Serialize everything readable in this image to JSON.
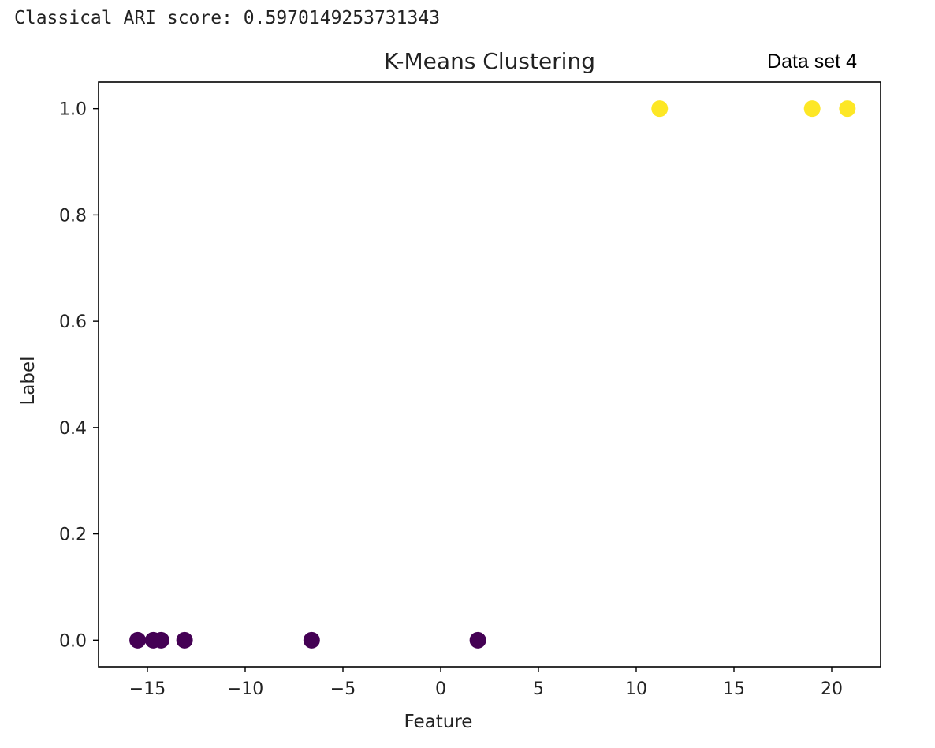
{
  "console": {
    "output": "Classical ARI score: 0.5970149253731343"
  },
  "chart_data": {
    "type": "scatter",
    "title": "K-Means Clustering",
    "annotation": "Data set 4",
    "xlabel": "Feature",
    "ylabel": "Label",
    "xlim": [
      -17.5,
      22.5
    ],
    "ylim": [
      -0.05,
      1.05
    ],
    "xticks": [
      -15,
      -10,
      -5,
      0,
      5,
      10,
      15,
      20
    ],
    "xtick_labels": [
      "−15",
      "−10",
      "−5",
      "0",
      "5",
      "10",
      "15",
      "20"
    ],
    "yticks": [
      0.0,
      0.2,
      0.4,
      0.6,
      0.8,
      1.0
    ],
    "ytick_labels": [
      "0.0",
      "0.2",
      "0.4",
      "0.6",
      "0.8",
      "1.0"
    ],
    "grid": false,
    "colors": {
      "cluster_0": "#440154",
      "cluster_1": "#fde725"
    },
    "points": [
      {
        "x": -15.5,
        "y": 0,
        "cluster": 0
      },
      {
        "x": -14.7,
        "y": 0,
        "cluster": 0
      },
      {
        "x": -14.3,
        "y": 0,
        "cluster": 0
      },
      {
        "x": -13.1,
        "y": 0,
        "cluster": 0
      },
      {
        "x": -6.6,
        "y": 0,
        "cluster": 0
      },
      {
        "x": 1.9,
        "y": 0,
        "cluster": 0
      },
      {
        "x": 11.2,
        "y": 1,
        "cluster": 1
      },
      {
        "x": 19.0,
        "y": 1,
        "cluster": 1
      },
      {
        "x": 20.8,
        "y": 1,
        "cluster": 1
      }
    ]
  }
}
